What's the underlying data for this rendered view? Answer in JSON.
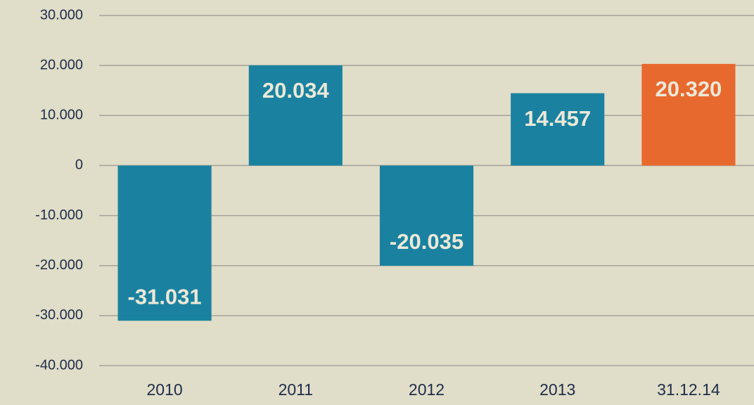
{
  "chart_data": {
    "type": "bar",
    "categories": [
      "2010",
      "2011",
      "2012",
      "2013",
      "31.12.14"
    ],
    "values": [
      -31031,
      20034,
      -20035,
      14457,
      20320
    ],
    "value_labels": [
      "-31.031",
      "20.034",
      "-20.035",
      "14.457",
      "20.320"
    ],
    "colors": [
      "#1a82a0",
      "#1a82a0",
      "#1a82a0",
      "#1a82a0",
      "#e8692e"
    ],
    "ylim": [
      -40000,
      30000
    ],
    "yticks": [
      {
        "value": -40000,
        "label": "-40.000"
      },
      {
        "value": -30000,
        "label": "-30.000"
      },
      {
        "value": -20000,
        "label": "-20.000"
      },
      {
        "value": -10000,
        "label": "-10.000"
      },
      0,
      {
        "value": 10000,
        "label": "10.000"
      },
      {
        "value": 20000,
        "label": "20.000"
      },
      {
        "value": 30000,
        "label": "30.000"
      }
    ],
    "grid": true
  }
}
